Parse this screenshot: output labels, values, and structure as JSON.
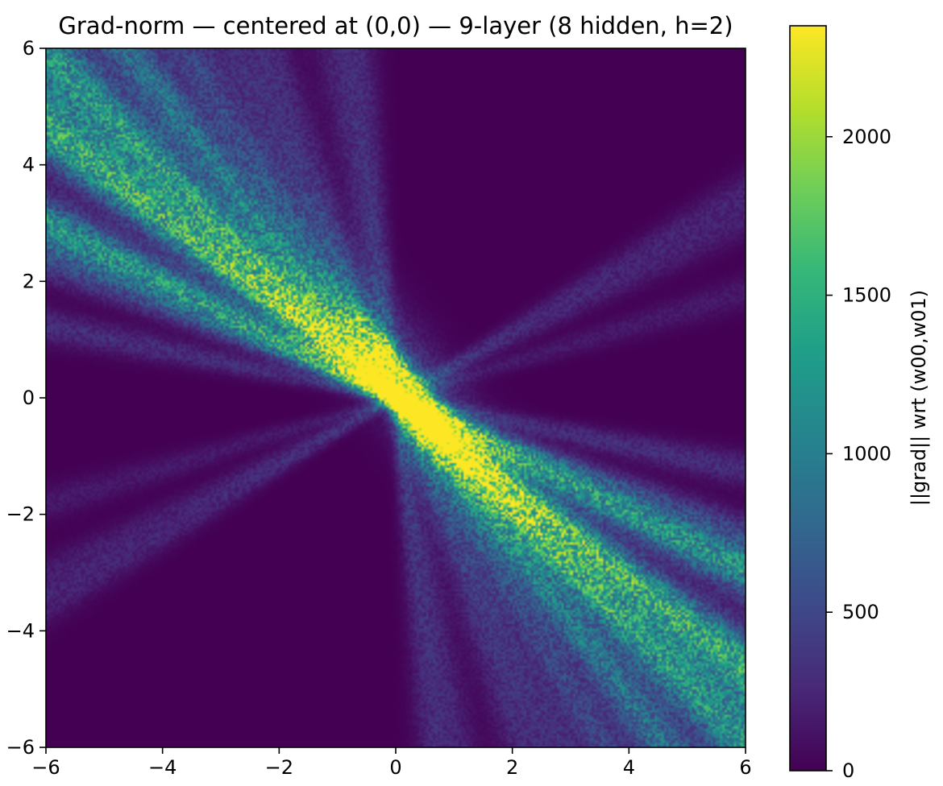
{
  "chart_data": {
    "type": "heatmap",
    "title": "Grad-norm — centered at (0,0) — 9-layer (8 hidden, h=2)",
    "xlabel": "",
    "ylabel": "",
    "xlim": [
      -6,
      6
    ],
    "ylim": [
      -6,
      6
    ],
    "x_ticks": [
      -6,
      -4,
      -2,
      0,
      2,
      4,
      6
    ],
    "x_tick_labels": [
      "−6",
      "−4",
      "−2",
      "0",
      "2",
      "4",
      "6"
    ],
    "y_ticks": [
      -6,
      -4,
      -2,
      0,
      2,
      4,
      6
    ],
    "y_tick_labels": [
      "−6",
      "−4",
      "−2",
      "0",
      "2",
      "4",
      "6"
    ],
    "colormap": "viridis",
    "colorbar": {
      "label": "||grad|| wrt (w00,w01)",
      "range": [
        0,
        2350
      ],
      "ticks": [
        0,
        500,
        1000,
        1500,
        2000
      ],
      "tick_labels": [
        "0",
        "500",
        "1000",
        "1500",
        "2000"
      ]
    },
    "peak": {
      "x": 0.25,
      "y": 0.2,
      "value": 2350
    },
    "grid": false
  },
  "colors": {
    "background": "#440154",
    "viridis": [
      "#440154",
      "#482878",
      "#3e4989",
      "#31688e",
      "#26828e",
      "#1f9e89",
      "#35b779",
      "#6ece58",
      "#b5de2b",
      "#fde725"
    ]
  }
}
